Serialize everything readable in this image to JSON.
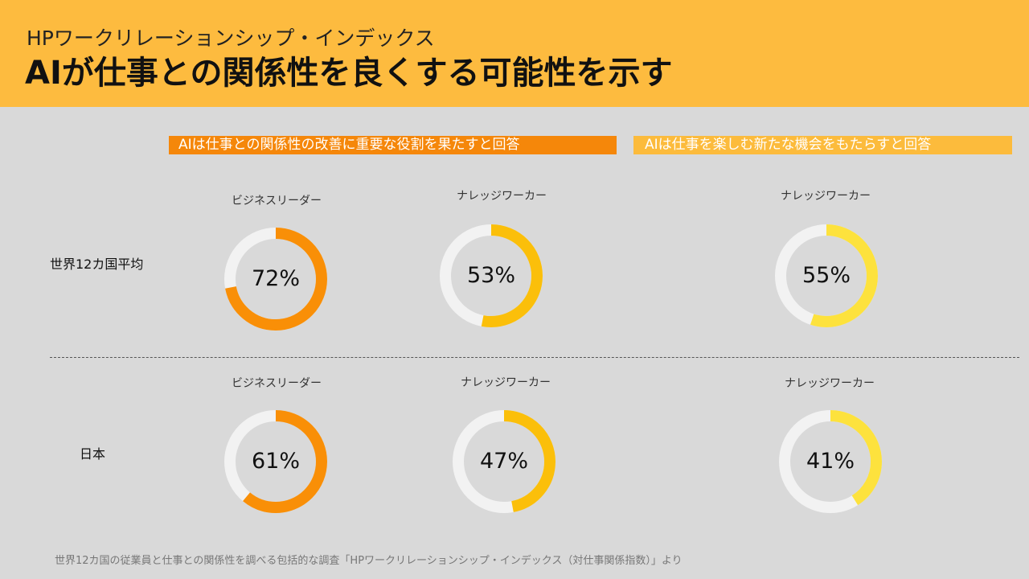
{
  "header": {
    "subtitle": "HPワークリレーションシップ・インデックス",
    "title": "AIが仕事との関係性を良くする可能性を示す",
    "background_color": "#fdbb3f"
  },
  "groups": [
    {
      "label": "AIは仕事との関係性の改善に重要な役割を果たすと回答",
      "color": "#f5870a"
    },
    {
      "label": "AIは仕事を楽しむ新たな機会をもたらすと回答",
      "color": "#fcbb3c"
    }
  ],
  "columns": [
    {
      "label": "ビジネスリーダー",
      "color": "#f98f07"
    },
    {
      "label": "ナレッジワーカー",
      "color": "#fbbf0a"
    },
    {
      "label": "ナレッジワーカー",
      "color": "#fde23d"
    }
  ],
  "rows": [
    {
      "label": "世界12カ国平均",
      "values": [
        72,
        53,
        55
      ],
      "value_labels": [
        "72%",
        "53%",
        "55%"
      ]
    },
    {
      "label": "日本",
      "values": [
        61,
        47,
        41
      ],
      "value_labels": [
        "61%",
        "47%",
        "41%"
      ]
    }
  ],
  "chart_data": {
    "type": "donut",
    "unit": "%",
    "categories": [
      "ビジネスリーダー",
      "ナレッジワーカー",
      "ナレッジワーカー"
    ],
    "series": [
      {
        "name": "世界12カ国平均",
        "values": [
          72,
          53,
          55
        ]
      },
      {
        "name": "日本",
        "values": [
          61,
          47,
          41
        ]
      }
    ],
    "ring_track_color": "#f2f2f2"
  },
  "footnote": "世界12カ国の従業員と仕事との関係性を調べる包括的な調査「HPワークリレーションシップ・インデックス（対仕事関係指数）」より"
}
